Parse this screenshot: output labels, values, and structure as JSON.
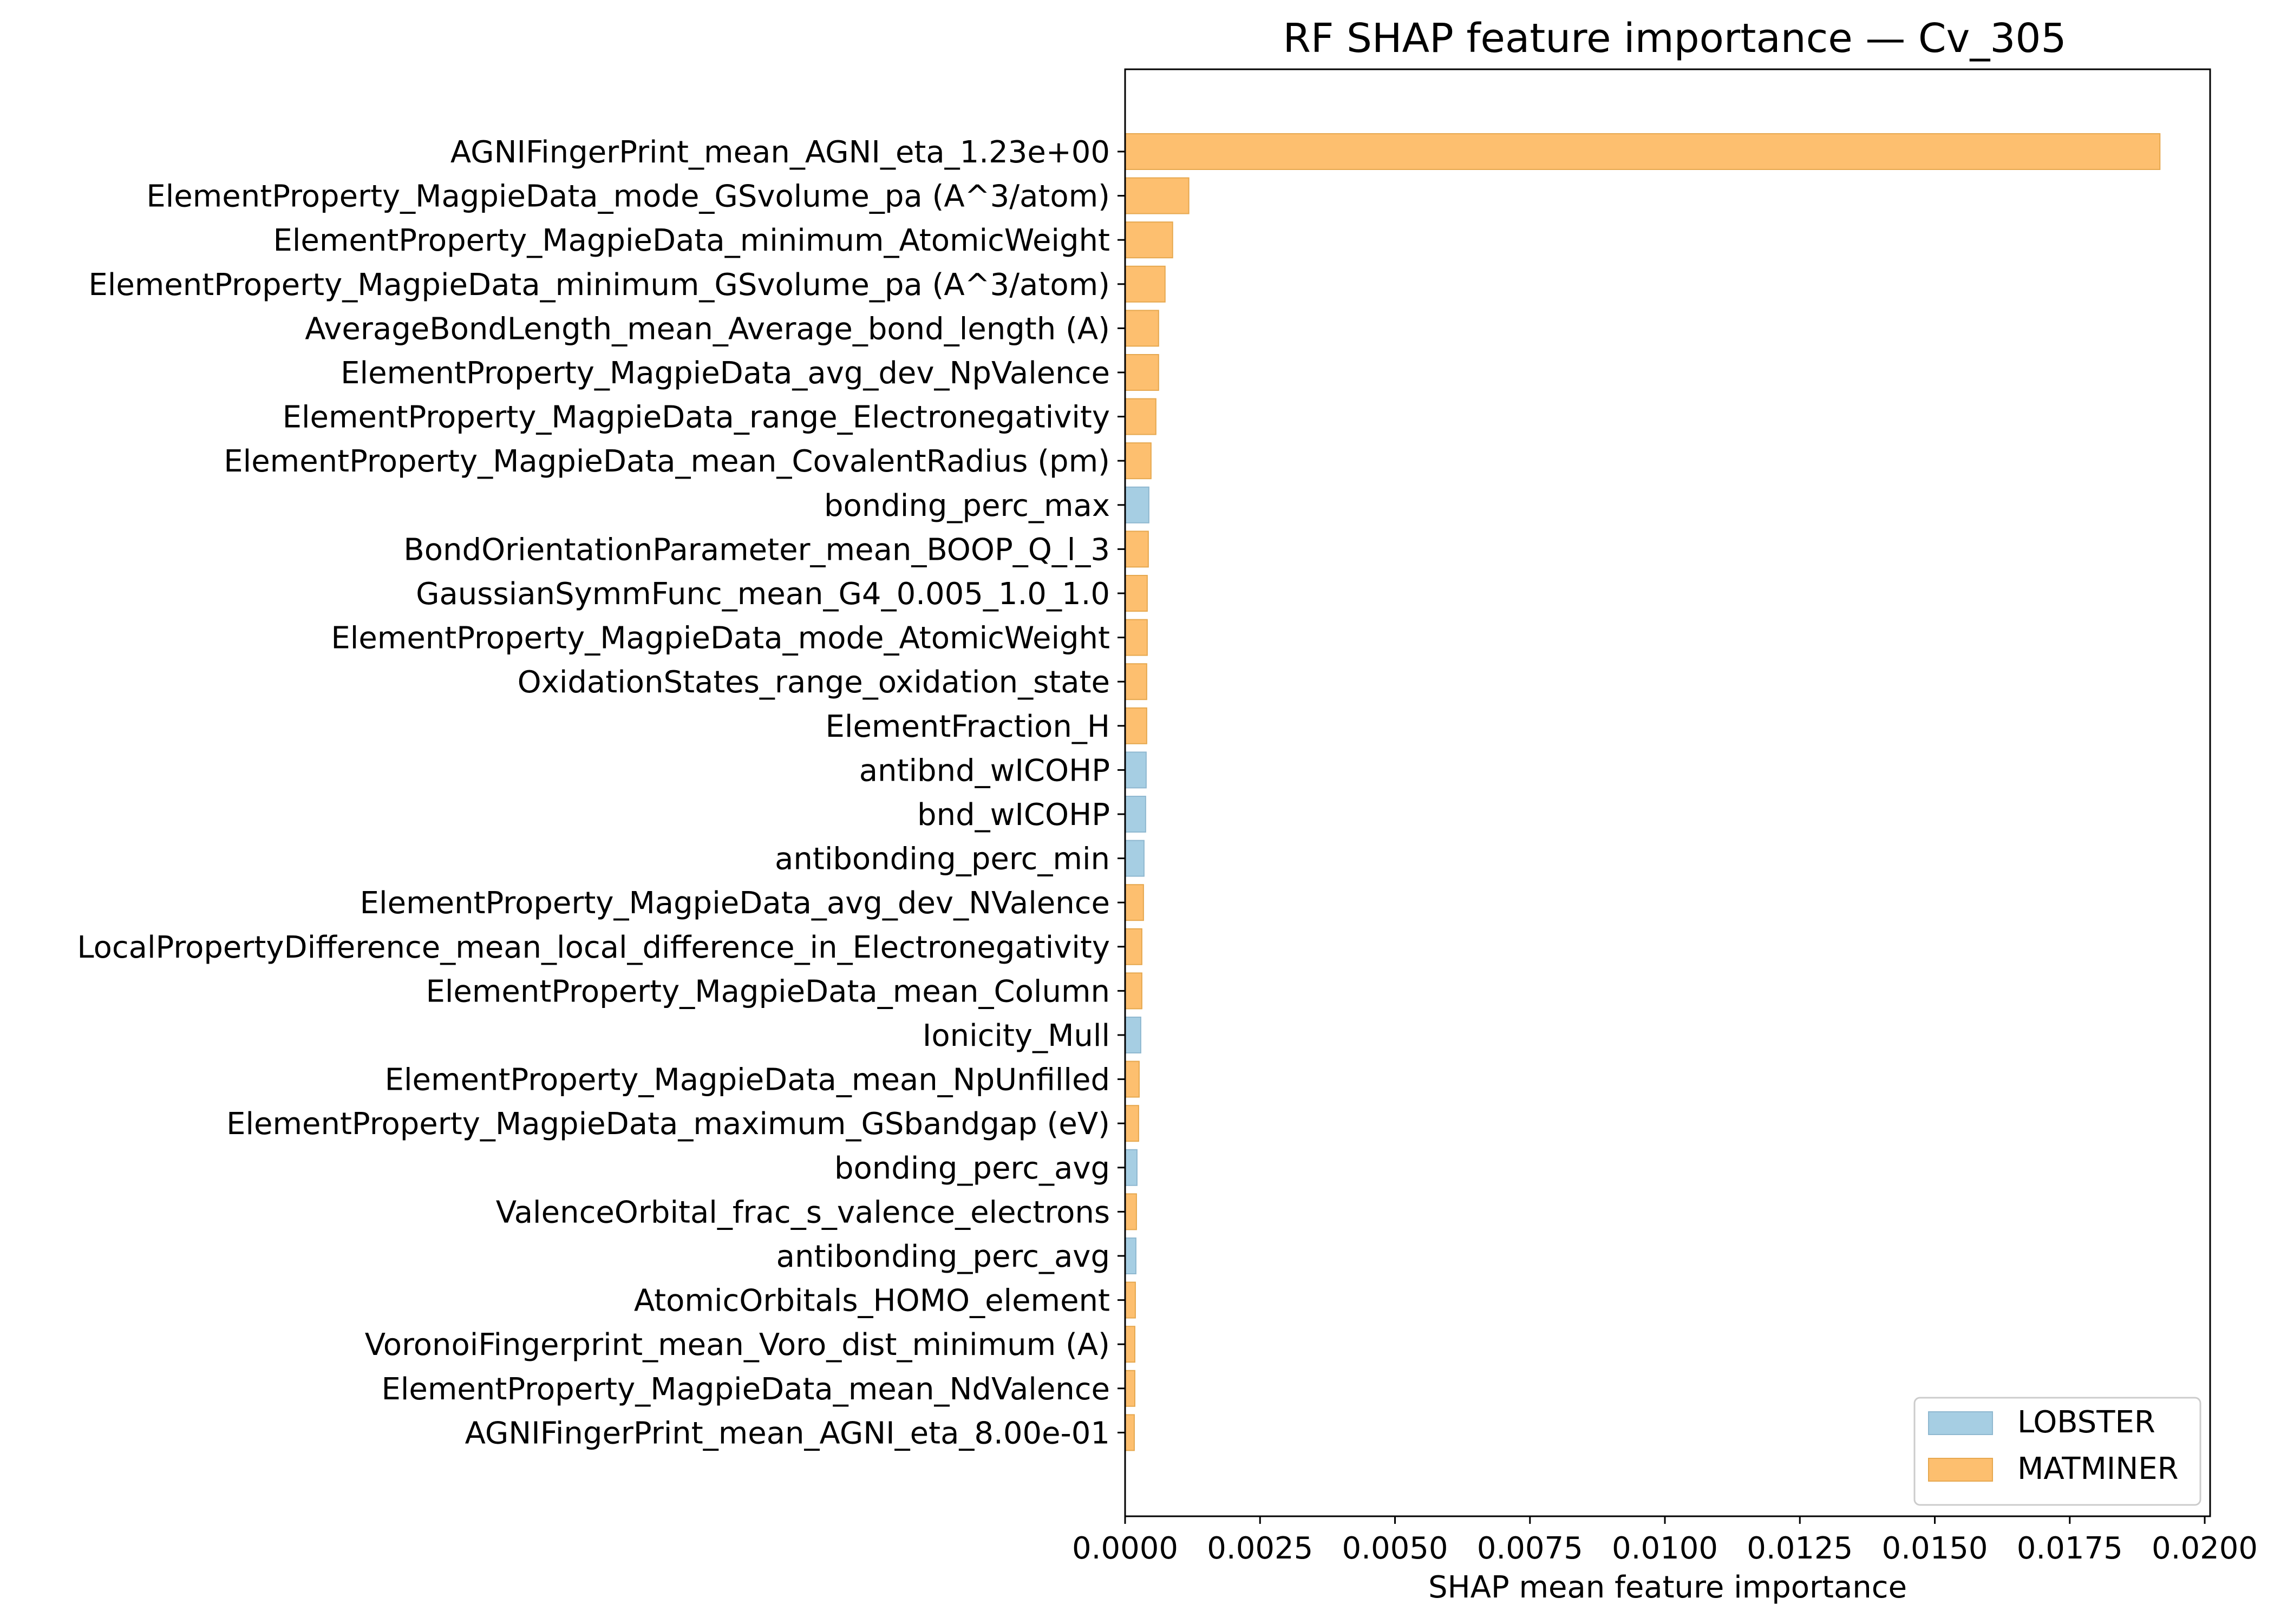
{
  "chart_data": {
    "type": "bar",
    "orientation": "horizontal",
    "title": "RF SHAP feature importance — Cv_305",
    "xlabel": "SHAP mean feature importance",
    "ylabel": "",
    "xlim": [
      0,
      0.0201
    ],
    "xticks": [
      "0.0000",
      "0.0025",
      "0.0050",
      "0.0075",
      "0.0100",
      "0.0125",
      "0.0150",
      "0.0175",
      "0.0200"
    ],
    "xtick_values": [
      0,
      0.0025,
      0.005,
      0.0075,
      0.01,
      0.0125,
      0.015,
      0.0175,
      0.02
    ],
    "grid": false,
    "legend_position": "lower-right",
    "legend": [
      {
        "name": "LOBSTER",
        "color": "#a6cee3"
      },
      {
        "name": "MATMINER",
        "color": "#fdbf6f"
      }
    ],
    "colors": {
      "LOBSTER": "#a6cee3",
      "MATMINER": "#fdbf6f",
      "LOBSTER_edge": "#8fb8d0",
      "MATMINER_edge": "#e6a84f"
    },
    "features": [
      {
        "label": "AGNIFingerPrint_mean_AGNI_eta_1.23e+00",
        "value": 0.01917,
        "source": "MATMINER"
      },
      {
        "label": "ElementProperty_MagpieData_mode_GSvolume_pa (A^3/atom)",
        "value": 0.00118,
        "source": "MATMINER"
      },
      {
        "label": "ElementProperty_MagpieData_minimum_AtomicWeight",
        "value": 0.00088,
        "source": "MATMINER"
      },
      {
        "label": "ElementProperty_MagpieData_minimum_GSvolume_pa (A^3/atom)",
        "value": 0.00074,
        "source": "MATMINER"
      },
      {
        "label": "AverageBondLength_mean_Average_bond_length (A)",
        "value": 0.00062,
        "source": "MATMINER"
      },
      {
        "label": "ElementProperty_MagpieData_avg_dev_NpValence",
        "value": 0.00062,
        "source": "MATMINER"
      },
      {
        "label": "ElementProperty_MagpieData_range_Electronegativity",
        "value": 0.00057,
        "source": "MATMINER"
      },
      {
        "label": "ElementProperty_MagpieData_mean_CovalentRadius (pm)",
        "value": 0.00048,
        "source": "MATMINER"
      },
      {
        "label": "bonding_perc_max",
        "value": 0.00044,
        "source": "LOBSTER"
      },
      {
        "label": "BondOrientationParameter_mean_BOOP_Q_l_3",
        "value": 0.00043,
        "source": "MATMINER"
      },
      {
        "label": "GaussianSymmFunc_mean_G4_0.005_1.0_1.0",
        "value": 0.00041,
        "source": "MATMINER"
      },
      {
        "label": "ElementProperty_MagpieData_mode_AtomicWeight",
        "value": 0.00041,
        "source": "MATMINER"
      },
      {
        "label": "OxidationStates_range_oxidation_state",
        "value": 0.0004,
        "source": "MATMINER"
      },
      {
        "label": "ElementFraction_H",
        "value": 0.0004,
        "source": "MATMINER"
      },
      {
        "label": "antibnd_wICOHP",
        "value": 0.00039,
        "source": "LOBSTER"
      },
      {
        "label": "bnd_wICOHP",
        "value": 0.00038,
        "source": "LOBSTER"
      },
      {
        "label": "antibonding_perc_min",
        "value": 0.00035,
        "source": "LOBSTER"
      },
      {
        "label": "ElementProperty_MagpieData_avg_dev_NValence",
        "value": 0.00034,
        "source": "MATMINER"
      },
      {
        "label": "LocalPropertyDifference_mean_local_difference_in_Electronegativity",
        "value": 0.00031,
        "source": "MATMINER"
      },
      {
        "label": "ElementProperty_MagpieData_mean_Column",
        "value": 0.00031,
        "source": "MATMINER"
      },
      {
        "label": "Ionicity_Mull",
        "value": 0.00029,
        "source": "LOBSTER"
      },
      {
        "label": "ElementProperty_MagpieData_mean_NpUnfilled",
        "value": 0.00026,
        "source": "MATMINER"
      },
      {
        "label": "ElementProperty_MagpieData_maximum_GSbandgap (eV)",
        "value": 0.00025,
        "source": "MATMINER"
      },
      {
        "label": "bonding_perc_avg",
        "value": 0.00022,
        "source": "LOBSTER"
      },
      {
        "label": "ValenceOrbital_frac_s_valence_electrons",
        "value": 0.00021,
        "source": "MATMINER"
      },
      {
        "label": "antibonding_perc_avg",
        "value": 0.0002,
        "source": "LOBSTER"
      },
      {
        "label": "AtomicOrbitals_HOMO_element",
        "value": 0.00019,
        "source": "MATMINER"
      },
      {
        "label": "VoronoiFingerprint_mean_Voro_dist_minimum (A)",
        "value": 0.00018,
        "source": "MATMINER"
      },
      {
        "label": "ElementProperty_MagpieData_mean_NdValence",
        "value": 0.00018,
        "source": "MATMINER"
      },
      {
        "label": "AGNIFingerPrint_mean_AGNI_eta_8.00e-01",
        "value": 0.00017,
        "source": "MATMINER"
      }
    ]
  }
}
